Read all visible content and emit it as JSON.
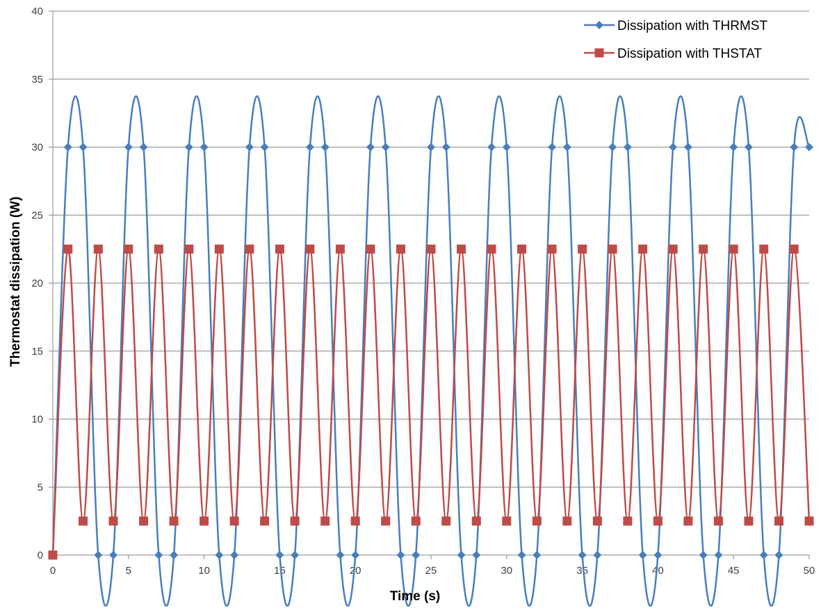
{
  "chart_data": {
    "type": "line",
    "title": "",
    "xlabel": "Time (s)",
    "ylabel": "Thermostat dissipation (W)",
    "xlim": [
      0,
      50
    ],
    "ylim": [
      0,
      40
    ],
    "x_ticks": [
      0,
      5,
      10,
      15,
      20,
      25,
      30,
      35,
      40,
      45,
      50
    ],
    "y_ticks": [
      0,
      5,
      10,
      15,
      20,
      25,
      30,
      35,
      40
    ],
    "grid": "horizontal",
    "legend_position": "top-right",
    "smooth": true,
    "series": [
      {
        "name": "Dissipation with THRMST",
        "color": "#4a7ebb",
        "marker": "diamond",
        "x": [
          0,
          1,
          2,
          3,
          4,
          5,
          6,
          7,
          8,
          9,
          10,
          11,
          12,
          13,
          14,
          15,
          16,
          17,
          18,
          19,
          20,
          21,
          22,
          23,
          24,
          25,
          26,
          27,
          28,
          29,
          30,
          31,
          32,
          33,
          34,
          35,
          36,
          37,
          38,
          39,
          40,
          41,
          42,
          43,
          44,
          45,
          46,
          47,
          48,
          49,
          50
        ],
        "y": [
          0,
          30,
          30,
          0,
          0,
          30,
          30,
          0,
          0,
          30,
          30,
          0,
          0,
          30,
          30,
          0,
          0,
          30,
          30,
          0,
          0,
          30,
          30,
          0,
          0,
          30,
          30,
          0,
          0,
          30,
          30,
          0,
          0,
          30,
          30,
          0,
          0,
          30,
          30,
          0,
          0,
          30,
          30,
          0,
          0,
          30,
          30,
          0,
          0,
          30,
          30
        ]
      },
      {
        "name": "Dissipation with THSTAT",
        "color": "#be4b48",
        "marker": "square",
        "x": [
          0,
          1,
          2,
          3,
          4,
          5,
          6,
          7,
          8,
          9,
          10,
          11,
          12,
          13,
          14,
          15,
          16,
          17,
          18,
          19,
          20,
          21,
          22,
          23,
          24,
          25,
          26,
          27,
          28,
          29,
          30,
          31,
          32,
          33,
          34,
          35,
          36,
          37,
          38,
          39,
          40,
          41,
          42,
          43,
          44,
          45,
          46,
          47,
          48,
          49,
          50
        ],
        "y": [
          0,
          22.5,
          2.5,
          22.5,
          2.5,
          22.5,
          2.5,
          22.5,
          2.5,
          22.5,
          2.5,
          22.5,
          2.5,
          22.5,
          2.5,
          22.5,
          2.5,
          22.5,
          2.5,
          22.5,
          2.5,
          22.5,
          2.5,
          22.5,
          2.5,
          22.5,
          2.5,
          22.5,
          2.5,
          22.5,
          2.5,
          22.5,
          2.5,
          22.5,
          2.5,
          22.5,
          2.5,
          22.5,
          2.5,
          22.5,
          2.5,
          22.5,
          2.5,
          22.5,
          2.5,
          22.5,
          2.5,
          22.5,
          2.5,
          22.5,
          2.5
        ]
      }
    ]
  }
}
